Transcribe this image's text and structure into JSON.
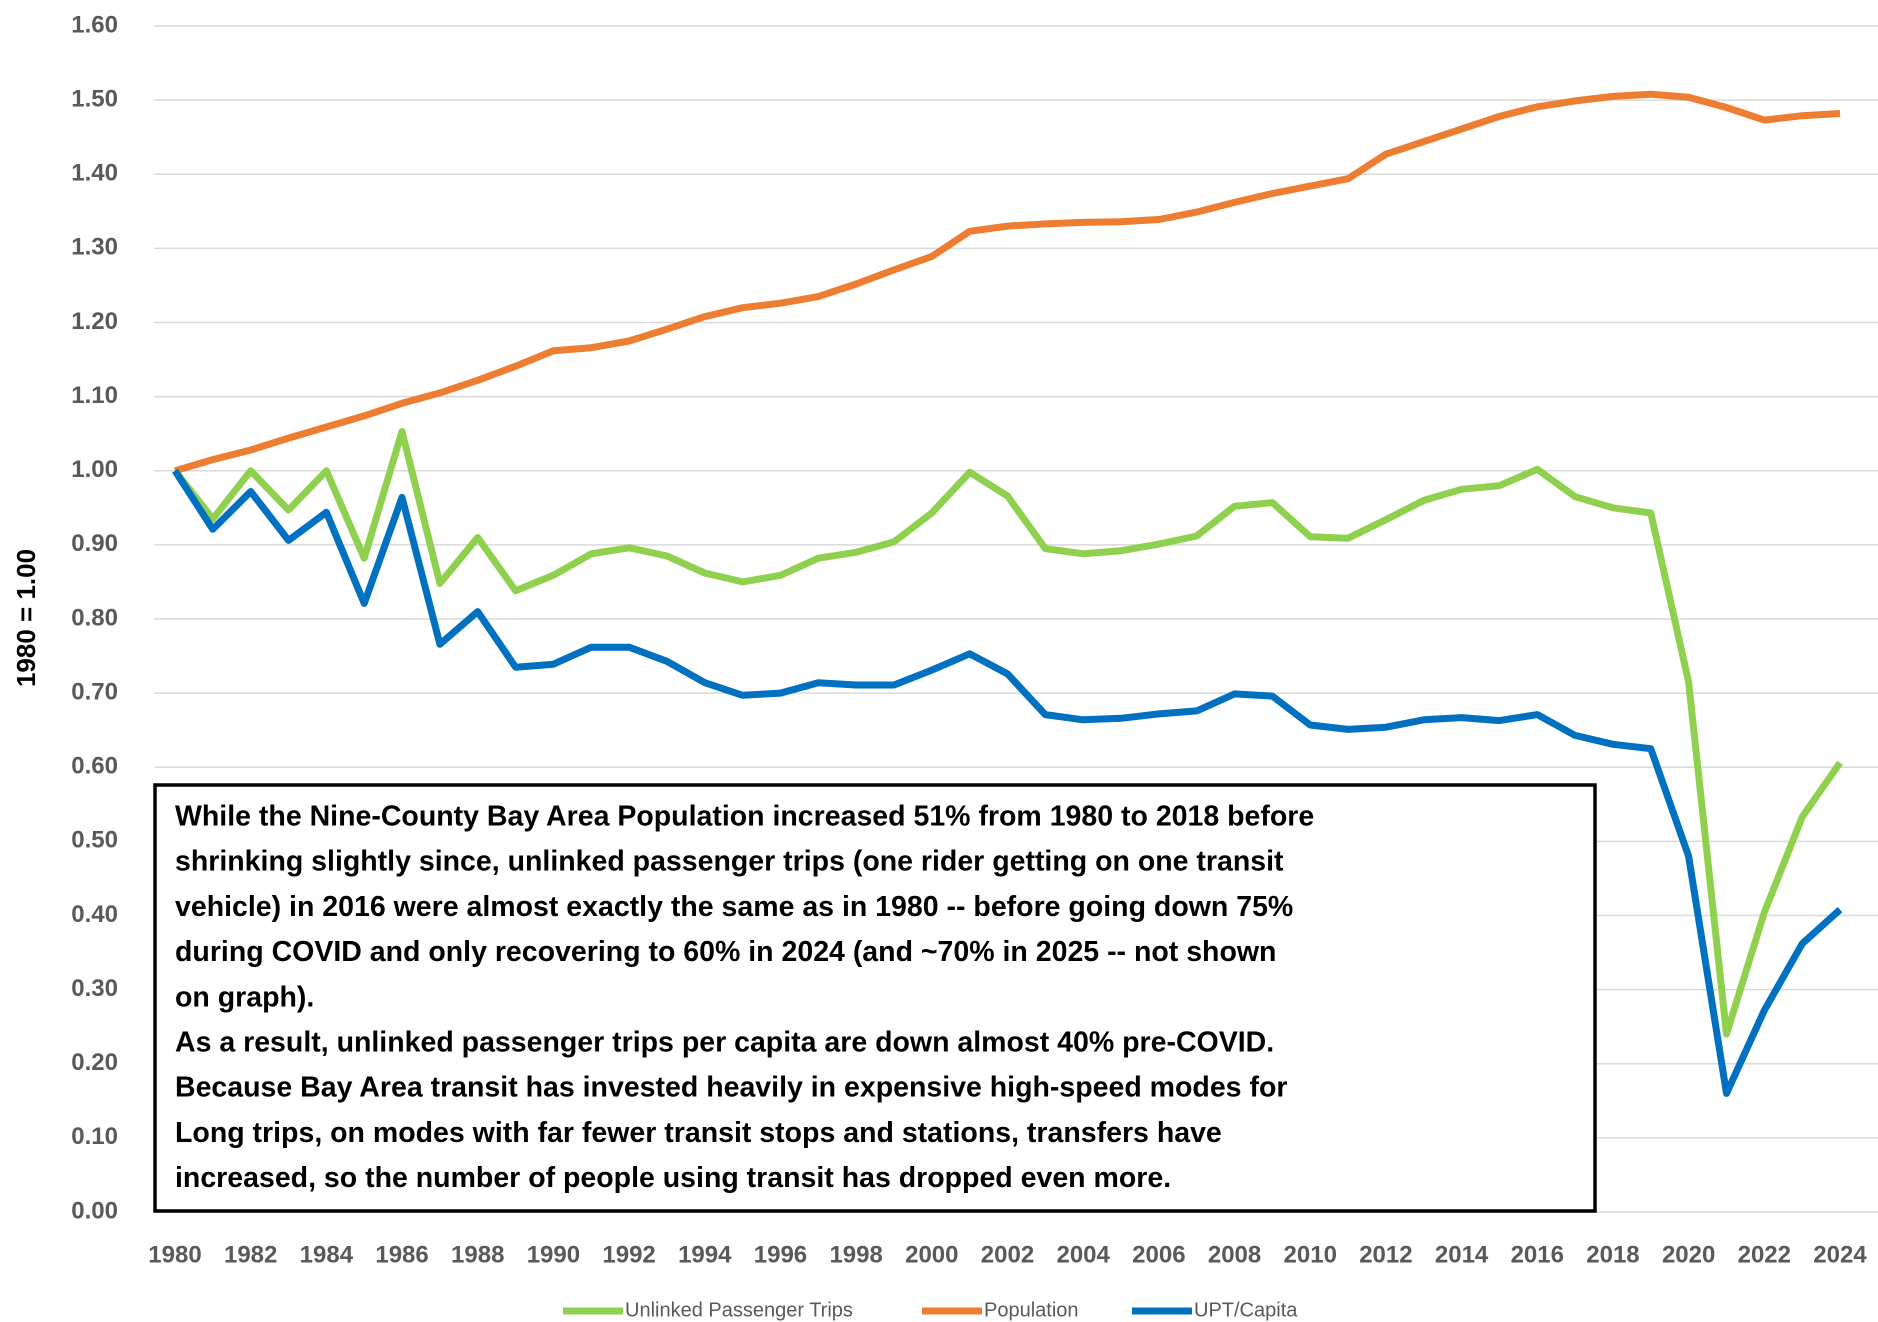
{
  "chart_data": {
    "type": "line",
    "y_label": "1980 = 1.00",
    "categories": [
      "1980",
      null,
      "1982",
      null,
      "1984",
      null,
      "1986",
      null,
      "1988",
      null,
      "1990",
      null,
      "1992",
      null,
      "1994",
      null,
      "1996",
      null,
      "1998",
      null,
      "2000",
      null,
      "2002",
      null,
      "2004",
      null,
      "2006",
      null,
      "2008",
      null,
      "2010",
      null,
      "2012",
      null,
      "2014",
      null,
      "2016",
      null,
      "2018",
      null,
      "2020",
      null,
      "2022",
      null,
      "2024"
    ],
    "series": [
      {
        "name": "Unlinked Passenger Trips",
        "color": "#8fd14f",
        "values": [
          1.0,
          0.935,
          1.0,
          0.947,
          1.0,
          0.882,
          1.053,
          0.848,
          0.91,
          0.838,
          0.859,
          0.888,
          0.896,
          0.885,
          0.862,
          0.85,
          0.859,
          0.882,
          0.89,
          0.904,
          0.943,
          0.998,
          0.966,
          0.895,
          0.888,
          0.892,
          0.901,
          0.912,
          0.952,
          0.957,
          0.911,
          0.909,
          0.934,
          0.96,
          0.975,
          0.98,
          1.002,
          0.965,
          0.95,
          0.943,
          0.715,
          0.24,
          0.404,
          0.533,
          0.606
        ]
      },
      {
        "name": "Population",
        "color": "#ed7d31",
        "values": [
          1.0,
          1.015,
          1.028,
          1.044,
          1.059,
          1.074,
          1.091,
          1.105,
          1.122,
          1.141,
          1.162,
          1.166,
          1.175,
          1.191,
          1.208,
          1.22,
          1.226,
          1.235,
          1.252,
          1.271,
          1.289,
          1.323,
          1.33,
          1.333,
          1.335,
          1.336,
          1.339,
          1.349,
          1.362,
          1.374,
          1.384,
          1.394,
          1.427,
          1.444,
          1.461,
          1.478,
          1.491,
          1.499,
          1.505,
          1.508,
          1.504,
          1.49,
          1.473,
          1.479,
          1.482
        ]
      },
      {
        "name": "UPT/Capita",
        "color": "#0070c0",
        "values": [
          1.0,
          0.921,
          0.972,
          0.906,
          0.944,
          0.821,
          0.964,
          0.766,
          0.81,
          0.735,
          0.739,
          0.762,
          0.762,
          0.743,
          0.714,
          0.697,
          0.7,
          0.714,
          0.711,
          0.711,
          0.731,
          0.753,
          0.726,
          0.671,
          0.664,
          0.666,
          0.672,
          0.676,
          0.699,
          0.696,
          0.657,
          0.651,
          0.654,
          0.664,
          0.667,
          0.663,
          0.671,
          0.643,
          0.631,
          0.625,
          0.48,
          0.16,
          0.272,
          0.362,
          0.408
        ]
      }
    ],
    "ylim": [
      0,
      1.6
    ],
    "yticks": [
      {
        "value": 0,
        "label": "0.00"
      },
      {
        "value": 0.1,
        "label": "0.10"
      },
      {
        "value": 0.2,
        "label": "0.20"
      },
      {
        "value": 0.3,
        "label": "0.30"
      },
      {
        "value": 0.4,
        "label": "0.40"
      },
      {
        "value": 0.5,
        "label": "0.50"
      },
      {
        "value": 0.6,
        "label": "0.60"
      },
      {
        "value": 0.7,
        "label": "0.70"
      },
      {
        "value": 0.8,
        "label": "0.80"
      },
      {
        "value": 0.9,
        "label": "0.90"
      },
      {
        "value": 1.0,
        "label": "1.00"
      },
      {
        "value": 1.1,
        "label": "1.10"
      },
      {
        "value": 1.2,
        "label": "1.20"
      },
      {
        "value": 1.3,
        "label": "1.30"
      },
      {
        "value": 1.4,
        "label": "1.40"
      },
      {
        "value": 1.5,
        "label": "1.50"
      },
      {
        "value": 1.6,
        "label": "1.60"
      }
    ],
    "grid": true,
    "legend": "bottom",
    "annotation": [
      "While the Nine-County Bay Area Population increased 51% from 1980 to 2018 before",
      "shrinking slightly since, unlinked passenger trips (one rider getting on one transit",
      "vehicle) in 2016 were almost exactly the same as in 1980 -- before going down 75%",
      "during COVID and only recovering to 60% in 2024 (and  ~70% in 2025 -- not shown",
      "on graph).",
      "As a result, unlinked passenger trips per capita are down almost 40% pre-COVID.",
      "Because Bay Area transit has invested heavily in expensive high-speed modes for",
      "Long trips,  on modes with far fewer transit stops and stations, transfers have",
      "increased, so the number of people using transit has dropped even more."
    ]
  }
}
